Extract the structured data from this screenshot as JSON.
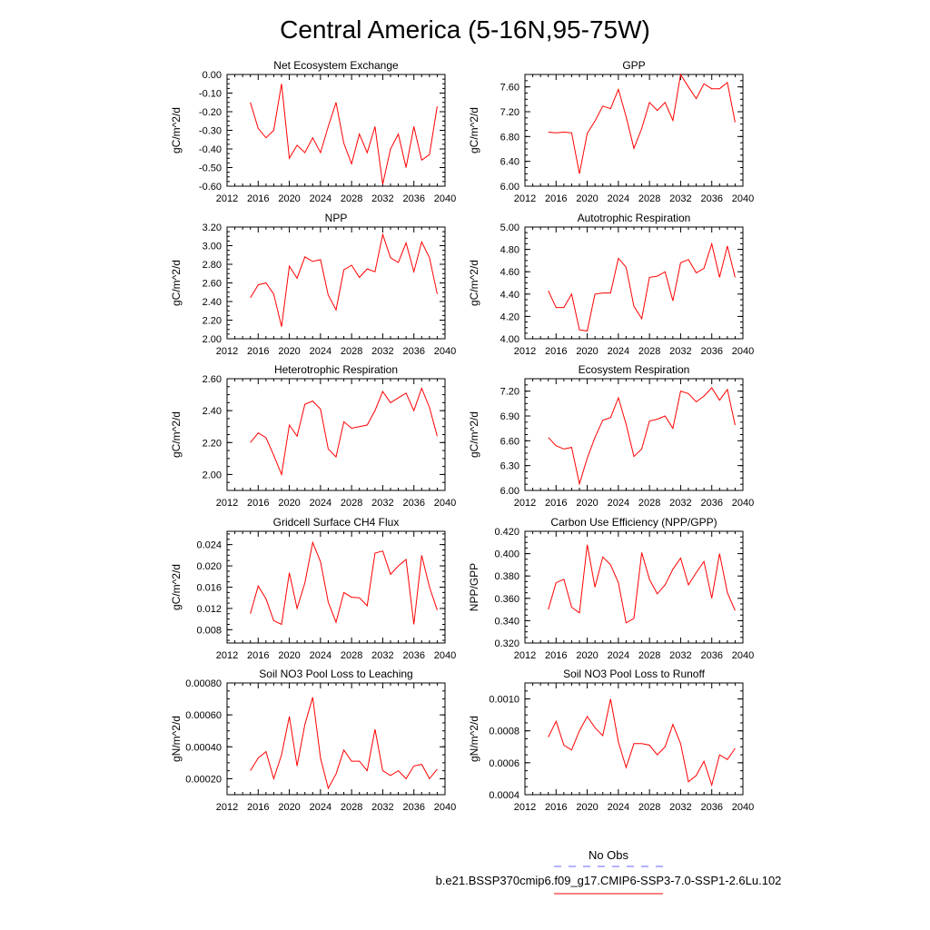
{
  "title": "Central America (5-16N,95-75W)",
  "colors": {
    "series": "#ff0000",
    "obs": "#6666ff",
    "axis": "#000000"
  },
  "legend": {
    "entries": [
      {
        "label": "No Obs",
        "style": "dashed",
        "color": "#6666ff"
      },
      {
        "label": "b.e21.BSSP370cmip6.f09_g17.CMIP6-SSP3-7.0-SSP1-2.6Lu.102",
        "style": "solid",
        "color": "#ff0000"
      }
    ]
  },
  "chart_data": [
    {
      "type": "line",
      "title": "Net Ecosystem Exchange",
      "ylabel": "gC/m^2/d",
      "xlim": [
        2012,
        2040
      ],
      "xticks": [
        "2012",
        "2016",
        "2020",
        "2024",
        "2028",
        "2032",
        "2036",
        "2040"
      ],
      "ylim": [
        -0.6,
        0.0
      ],
      "yticks": [
        "0.00",
        "-0.10",
        "-0.20",
        "-0.30",
        "-0.40",
        "-0.50",
        "-0.60"
      ],
      "x": [
        2015,
        2016,
        2017,
        2018,
        2019,
        2020,
        2021,
        2022,
        2023,
        2024,
        2025,
        2026,
        2027,
        2028,
        2029,
        2030,
        2031,
        2032,
        2033,
        2034,
        2035,
        2036,
        2037,
        2038,
        2039
      ],
      "series": [
        {
          "values": [
            -0.15,
            -0.29,
            -0.34,
            -0.3,
            -0.05,
            -0.45,
            -0.38,
            -0.42,
            -0.34,
            -0.42,
            -0.28,
            -0.15,
            -0.37,
            -0.48,
            -0.32,
            -0.42,
            -0.28,
            -0.59,
            -0.4,
            -0.32,
            -0.5,
            -0.28,
            -0.46,
            -0.43,
            -0.17
          ]
        }
      ]
    },
    {
      "type": "line",
      "title": "GPP",
      "ylabel": "gC/m^2/d",
      "xlim": [
        2012,
        2040
      ],
      "xticks": [
        "2012",
        "2016",
        "2020",
        "2024",
        "2028",
        "2032",
        "2036",
        "2040"
      ],
      "ylim": [
        6.0,
        7.8
      ],
      "yticks": [
        "7.60",
        "7.20",
        "6.80",
        "6.40",
        "6.00"
      ],
      "x": [
        2015,
        2016,
        2017,
        2018,
        2019,
        2020,
        2021,
        2022,
        2023,
        2024,
        2025,
        2026,
        2027,
        2028,
        2029,
        2030,
        2031,
        2032,
        2033,
        2034,
        2035,
        2036,
        2037,
        2038,
        2039
      ],
      "series": [
        {
          "values": [
            6.87,
            6.86,
            6.87,
            6.86,
            6.2,
            6.85,
            7.05,
            7.29,
            7.25,
            7.56,
            7.12,
            6.61,
            6.93,
            7.35,
            7.22,
            7.35,
            7.06,
            7.8,
            7.6,
            7.41,
            7.65,
            7.57,
            7.57,
            7.67,
            7.03
          ]
        }
      ]
    },
    {
      "type": "line",
      "title": "NPP",
      "ylabel": "gC/m^2/d",
      "xlim": [
        2012,
        2040
      ],
      "xticks": [
        "2012",
        "2016",
        "2020",
        "2024",
        "2028",
        "2032",
        "2036",
        "2040"
      ],
      "ylim": [
        2.0,
        3.2
      ],
      "yticks": [
        "3.20",
        "3.00",
        "2.80",
        "2.60",
        "2.40",
        "2.20",
        "2.00"
      ],
      "x": [
        2015,
        2016,
        2017,
        2018,
        2019,
        2020,
        2021,
        2022,
        2023,
        2024,
        2025,
        2026,
        2027,
        2028,
        2029,
        2030,
        2031,
        2032,
        2033,
        2034,
        2035,
        2036,
        2037,
        2038,
        2039
      ],
      "series": [
        {
          "values": [
            2.44,
            2.58,
            2.6,
            2.48,
            2.13,
            2.78,
            2.65,
            2.88,
            2.83,
            2.85,
            2.47,
            2.31,
            2.74,
            2.79,
            2.66,
            2.75,
            2.72,
            3.12,
            2.87,
            2.82,
            3.03,
            2.72,
            3.04,
            2.87,
            2.48
          ]
        }
      ]
    },
    {
      "type": "line",
      "title": "Autotrophic Respiration",
      "ylabel": "gC/m^2/d",
      "xlim": [
        2012,
        2040
      ],
      "xticks": [
        "2012",
        "2016",
        "2020",
        "2024",
        "2028",
        "2032",
        "2036",
        "2040"
      ],
      "ylim": [
        4.0,
        5.0
      ],
      "yticks": [
        "5.00",
        "4.80",
        "4.60",
        "4.40",
        "4.20",
        "4.00"
      ],
      "x": [
        2015,
        2016,
        2017,
        2018,
        2019,
        2020,
        2021,
        2022,
        2023,
        2024,
        2025,
        2026,
        2027,
        2028,
        2029,
        2030,
        2031,
        2032,
        2033,
        2034,
        2035,
        2036,
        2037,
        2038,
        2039
      ],
      "series": [
        {
          "values": [
            4.43,
            4.28,
            4.28,
            4.4,
            4.08,
            4.07,
            4.4,
            4.41,
            4.41,
            4.72,
            4.64,
            4.29,
            4.18,
            4.55,
            4.56,
            4.6,
            4.34,
            4.68,
            4.71,
            4.59,
            4.63,
            4.85,
            4.55,
            4.83,
            4.55
          ]
        }
      ]
    },
    {
      "type": "line",
      "title": "Heterotrophic Respiration",
      "ylabel": "gC/m^2/d",
      "xlim": [
        2012,
        2040
      ],
      "xticks": [
        "2012",
        "2016",
        "2020",
        "2024",
        "2028",
        "2032",
        "2036",
        "2040"
      ],
      "ylim": [
        1.9,
        2.6
      ],
      "yticks": [
        "2.60",
        "2.40",
        "2.20",
        "2.00"
      ],
      "x": [
        2015,
        2016,
        2017,
        2018,
        2019,
        2020,
        2021,
        2022,
        2023,
        2024,
        2025,
        2026,
        2027,
        2028,
        2029,
        2030,
        2031,
        2032,
        2033,
        2034,
        2035,
        2036,
        2037,
        2038,
        2039
      ],
      "series": [
        {
          "values": [
            2.2,
            2.26,
            2.23,
            2.12,
            2.0,
            2.31,
            2.24,
            2.44,
            2.46,
            2.41,
            2.16,
            2.11,
            2.33,
            2.29,
            2.3,
            2.31,
            2.4,
            2.52,
            2.45,
            2.48,
            2.51,
            2.4,
            2.54,
            2.42,
            2.24
          ]
        }
      ]
    },
    {
      "type": "line",
      "title": "Ecosystem Respiration",
      "ylabel": "gC/m^2/d",
      "xlim": [
        2012,
        2040
      ],
      "xticks": [
        "2012",
        "2016",
        "2020",
        "2024",
        "2028",
        "2032",
        "2036",
        "2040"
      ],
      "ylim": [
        6.0,
        7.35
      ],
      "yticks": [
        "7.20",
        "6.90",
        "6.60",
        "6.30",
        "6.00"
      ],
      "x": [
        2015,
        2016,
        2017,
        2018,
        2019,
        2020,
        2021,
        2022,
        2023,
        2024,
        2025,
        2026,
        2027,
        2028,
        2029,
        2030,
        2031,
        2032,
        2033,
        2034,
        2035,
        2036,
        2037,
        2038,
        2039
      ],
      "series": [
        {
          "values": [
            6.64,
            6.54,
            6.5,
            6.52,
            6.08,
            6.39,
            6.64,
            6.85,
            6.88,
            7.12,
            6.8,
            6.41,
            6.5,
            6.84,
            6.86,
            6.9,
            6.75,
            7.2,
            7.17,
            7.07,
            7.14,
            7.24,
            7.09,
            7.22,
            6.79
          ]
        }
      ]
    },
    {
      "type": "line",
      "title": "Gridcell Surface CH4 Flux",
      "ylabel": "gC/m^2/d",
      "xlim": [
        2012,
        2040
      ],
      "xticks": [
        "2012",
        "2016",
        "2020",
        "2024",
        "2028",
        "2032",
        "2036",
        "2040"
      ],
      "ylim": [
        0.0055,
        0.0265
      ],
      "yticks": [
        "0.024",
        "0.020",
        "0.016",
        "0.012",
        "0.008"
      ],
      "x": [
        2015,
        2016,
        2017,
        2018,
        2019,
        2020,
        2021,
        2022,
        2023,
        2024,
        2025,
        2026,
        2027,
        2028,
        2029,
        2030,
        2031,
        2032,
        2033,
        2034,
        2035,
        2036,
        2037,
        2038,
        2039
      ],
      "series": [
        {
          "values": [
            0.011,
            0.0162,
            0.0138,
            0.0097,
            0.009,
            0.0187,
            0.012,
            0.0168,
            0.0244,
            0.0208,
            0.0132,
            0.0094,
            0.015,
            0.0141,
            0.014,
            0.0125,
            0.0224,
            0.0228,
            0.0184,
            0.02,
            0.0212,
            0.009,
            0.022,
            0.016,
            0.0117
          ]
        }
      ]
    },
    {
      "type": "line",
      "title": "Carbon Use Efficiency (NPP/GPP)",
      "ylabel": "NPP/GPP",
      "xlim": [
        2012,
        2040
      ],
      "xticks": [
        "2012",
        "2016",
        "2020",
        "2024",
        "2028",
        "2032",
        "2036",
        "2040"
      ],
      "ylim": [
        0.32,
        0.42
      ],
      "yticks": [
        "0.420",
        "0.400",
        "0.380",
        "0.360",
        "0.340",
        "0.320"
      ],
      "x": [
        2015,
        2016,
        2017,
        2018,
        2019,
        2020,
        2021,
        2022,
        2023,
        2024,
        2025,
        2026,
        2027,
        2028,
        2029,
        2030,
        2031,
        2032,
        2033,
        2034,
        2035,
        2036,
        2037,
        2038,
        2039
      ],
      "series": [
        {
          "values": [
            0.35,
            0.374,
            0.377,
            0.352,
            0.347,
            0.408,
            0.37,
            0.397,
            0.39,
            0.374,
            0.338,
            0.342,
            0.401,
            0.377,
            0.364,
            0.372,
            0.386,
            0.396,
            0.372,
            0.383,
            0.393,
            0.36,
            0.4,
            0.365,
            0.349
          ]
        }
      ]
    },
    {
      "type": "line",
      "title": "Soil NO3 Pool Loss to Leaching",
      "ylabel": "gN/m^2/d",
      "xlim": [
        2012,
        2040
      ],
      "xticks": [
        "2012",
        "2016",
        "2020",
        "2024",
        "2028",
        "2032",
        "2036",
        "2040"
      ],
      "ylim": [
        0.0001,
        0.0008
      ],
      "yticks": [
        "0.00080",
        "0.00060",
        "0.00040",
        "0.00020"
      ],
      "x": [
        2015,
        2016,
        2017,
        2018,
        2019,
        2020,
        2021,
        2022,
        2023,
        2024,
        2025,
        2026,
        2027,
        2028,
        2029,
        2030,
        2031,
        2032,
        2033,
        2034,
        2035,
        2036,
        2037,
        2038,
        2039
      ],
      "series": [
        {
          "values": [
            0.00025,
            0.00033,
            0.00037,
            0.0002,
            0.00035,
            0.00059,
            0.00028,
            0.00054,
            0.00071,
            0.00033,
            0.00014,
            0.00023,
            0.00038,
            0.00031,
            0.00031,
            0.00025,
            0.00051,
            0.00025,
            0.00022,
            0.00025,
            0.0002,
            0.00028,
            0.00029,
            0.0002,
            0.00026
          ]
        }
      ]
    },
    {
      "type": "line",
      "title": "Soil NO3 Pool Loss to Runoff",
      "ylabel": "gN/m^2/d",
      "xlim": [
        2012,
        2040
      ],
      "xticks": [
        "2012",
        "2016",
        "2020",
        "2024",
        "2028",
        "2032",
        "2036",
        "2040"
      ],
      "ylim": [
        0.0004,
        0.0011
      ],
      "yticks": [
        "0.0010",
        "0.0008",
        "0.0006",
        "0.0004"
      ],
      "x": [
        2015,
        2016,
        2017,
        2018,
        2019,
        2020,
        2021,
        2022,
        2023,
        2024,
        2025,
        2026,
        2027,
        2028,
        2029,
        2030,
        2031,
        2032,
        2033,
        2034,
        2035,
        2036,
        2037,
        2038,
        2039
      ],
      "series": [
        {
          "values": [
            0.00076,
            0.00086,
            0.00071,
            0.00068,
            0.0008,
            0.00089,
            0.00082,
            0.00077,
            0.001,
            0.00073,
            0.00057,
            0.00072,
            0.00072,
            0.00071,
            0.00065,
            0.0007,
            0.00084,
            0.00072,
            0.00048,
            0.00052,
            0.00061,
            0.00046,
            0.00065,
            0.00062,
            0.00069
          ]
        }
      ]
    }
  ]
}
